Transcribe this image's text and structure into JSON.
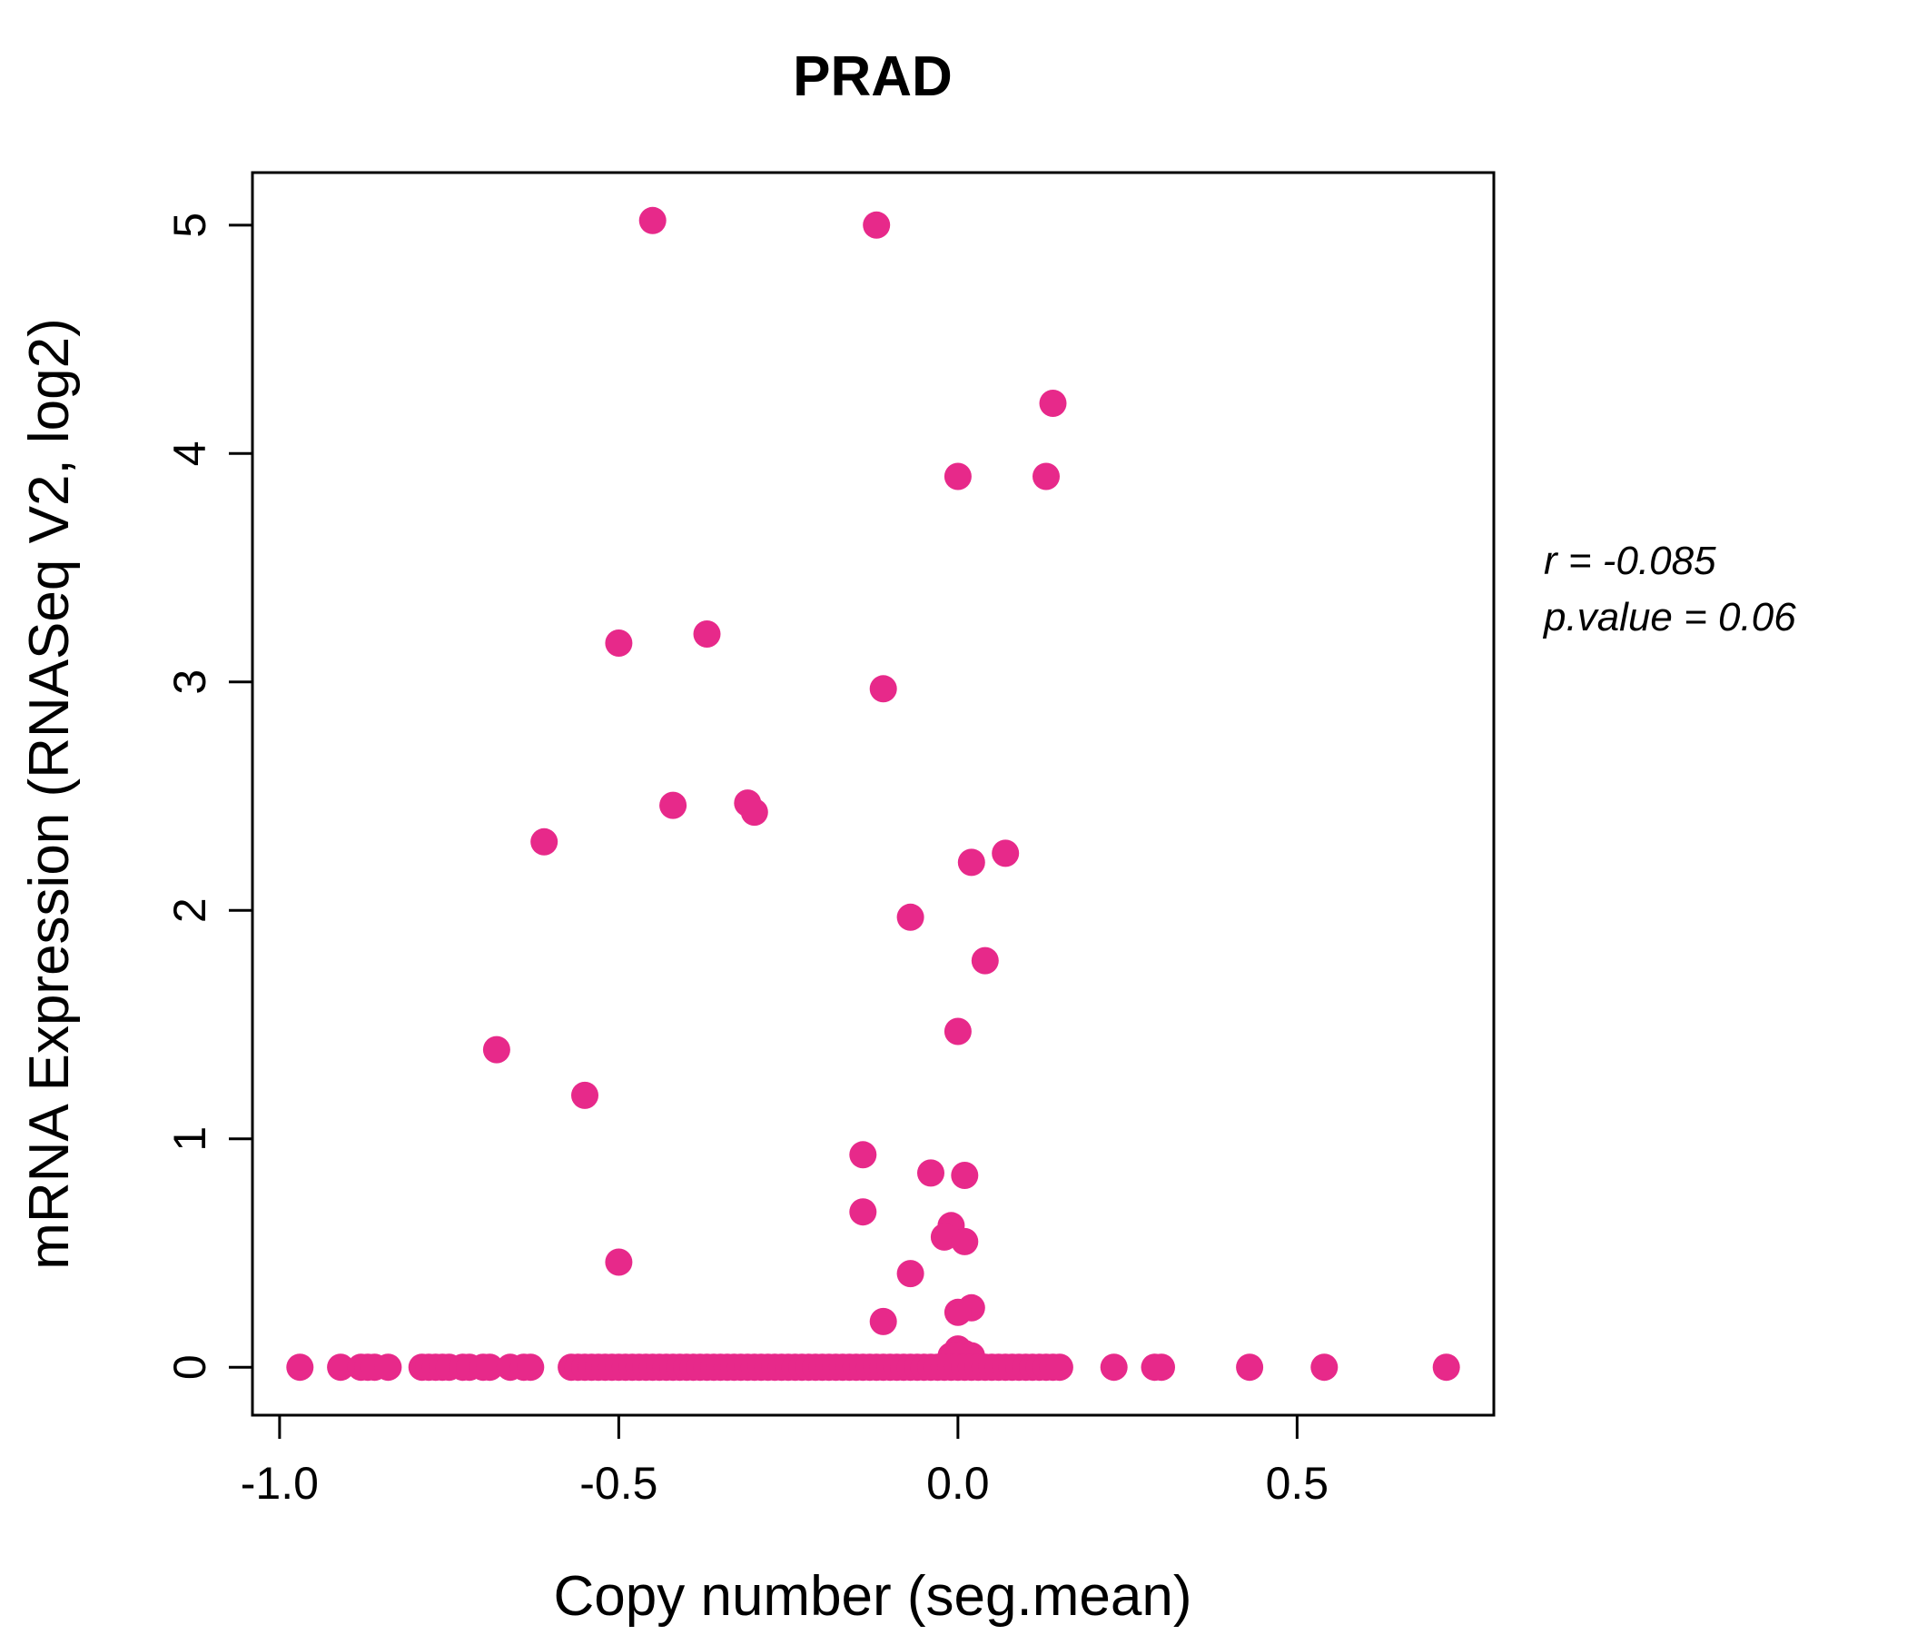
{
  "annotation": {
    "line1": "r = -0.085",
    "line2": "p.value = 0.06"
  },
  "colors": {
    "point": "#E7298A",
    "title": "#E7298A",
    "axis": "#000000"
  },
  "chart_data": {
    "type": "scatter",
    "title": "PRAD",
    "xlabel": "Copy number (seg.mean)",
    "ylabel": "mRNA Expression (RNASeq V2, log2)",
    "xlim": [
      -1.04,
      0.79
    ],
    "ylim": [
      -0.21,
      5.23
    ],
    "xticks": [
      -1.0,
      -0.5,
      0.0,
      0.5
    ],
    "xtick_labels": [
      "-1.0",
      "-0.5",
      "0.0",
      "0.5"
    ],
    "yticks": [
      0,
      1,
      2,
      3,
      4,
      5
    ],
    "ytick_labels": [
      "0",
      "1",
      "2",
      "3",
      "4",
      "5"
    ],
    "grid": false,
    "legend": "none",
    "r": -0.085,
    "p_value": 0.06,
    "points": [
      [
        -0.45,
        5.02
      ],
      [
        -0.12,
        5.0
      ],
      [
        0.14,
        4.22
      ],
      [
        0.0,
        3.9
      ],
      [
        0.13,
        3.9
      ],
      [
        -0.37,
        3.21
      ],
      [
        -0.5,
        3.17
      ],
      [
        -0.11,
        2.97
      ],
      [
        -0.31,
        2.47
      ],
      [
        -0.42,
        2.46
      ],
      [
        -0.3,
        2.43
      ],
      [
        -0.61,
        2.3
      ],
      [
        0.07,
        2.25
      ],
      [
        0.02,
        2.21
      ],
      [
        -0.07,
        1.97
      ],
      [
        0.04,
        1.78
      ],
      [
        0.0,
        1.47
      ],
      [
        -0.68,
        1.39
      ],
      [
        -0.55,
        1.19
      ],
      [
        -0.14,
        0.93
      ],
      [
        -0.04,
        0.85
      ],
      [
        0.01,
        0.84
      ],
      [
        -0.14,
        0.68
      ],
      [
        -0.01,
        0.62
      ],
      [
        -0.02,
        0.57
      ],
      [
        0.01,
        0.55
      ],
      [
        -0.5,
        0.46
      ],
      [
        -0.07,
        0.41
      ],
      [
        0.02,
        0.26
      ],
      [
        0.0,
        0.24
      ],
      [
        -0.11,
        0.2
      ],
      [
        0.0,
        0.08
      ],
      [
        0.01,
        0.06
      ],
      [
        -0.01,
        0.05
      ],
      [
        0.02,
        0.05
      ],
      [
        -0.97,
        0
      ],
      [
        -0.91,
        0
      ],
      [
        -0.88,
        0
      ],
      [
        -0.87,
        0
      ],
      [
        -0.86,
        0
      ],
      [
        -0.84,
        0
      ],
      [
        -0.79,
        0
      ],
      [
        -0.78,
        0
      ],
      [
        -0.77,
        0
      ],
      [
        -0.76,
        0
      ],
      [
        -0.75,
        0
      ],
      [
        -0.73,
        0
      ],
      [
        -0.72,
        0
      ],
      [
        -0.7,
        0
      ],
      [
        -0.69,
        0
      ],
      [
        -0.66,
        0
      ],
      [
        -0.64,
        0
      ],
      [
        -0.63,
        0
      ],
      [
        -0.57,
        0
      ],
      [
        -0.56,
        0
      ],
      [
        -0.55,
        0
      ],
      [
        -0.54,
        0
      ],
      [
        -0.53,
        0
      ],
      [
        -0.52,
        0
      ],
      [
        -0.51,
        0
      ],
      [
        -0.5,
        0
      ],
      [
        -0.49,
        0
      ],
      [
        -0.48,
        0
      ],
      [
        -0.47,
        0
      ],
      [
        -0.46,
        0
      ],
      [
        -0.45,
        0
      ],
      [
        -0.44,
        0
      ],
      [
        -0.43,
        0
      ],
      [
        -0.42,
        0
      ],
      [
        -0.41,
        0
      ],
      [
        -0.4,
        0
      ],
      [
        -0.39,
        0
      ],
      [
        -0.38,
        0
      ],
      [
        -0.37,
        0
      ],
      [
        -0.36,
        0
      ],
      [
        -0.35,
        0
      ],
      [
        -0.34,
        0
      ],
      [
        -0.33,
        0
      ],
      [
        -0.32,
        0
      ],
      [
        -0.31,
        0
      ],
      [
        -0.3,
        0
      ],
      [
        -0.29,
        0
      ],
      [
        -0.28,
        0
      ],
      [
        -0.27,
        0
      ],
      [
        -0.26,
        0
      ],
      [
        -0.25,
        0
      ],
      [
        -0.24,
        0
      ],
      [
        -0.23,
        0
      ],
      [
        -0.22,
        0
      ],
      [
        -0.21,
        0
      ],
      [
        -0.2,
        0
      ],
      [
        -0.19,
        0
      ],
      [
        -0.18,
        0
      ],
      [
        -0.17,
        0
      ],
      [
        -0.16,
        0
      ],
      [
        -0.15,
        0
      ],
      [
        -0.14,
        0
      ],
      [
        -0.13,
        0
      ],
      [
        -0.12,
        0
      ],
      [
        -0.11,
        0
      ],
      [
        -0.1,
        0
      ],
      [
        -0.09,
        0
      ],
      [
        -0.08,
        0
      ],
      [
        -0.07,
        0
      ],
      [
        -0.06,
        0
      ],
      [
        -0.05,
        0
      ],
      [
        -0.04,
        0
      ],
      [
        -0.03,
        0
      ],
      [
        -0.02,
        0
      ],
      [
        -0.01,
        0
      ],
      [
        0.0,
        0
      ],
      [
        0.01,
        0
      ],
      [
        0.02,
        0
      ],
      [
        0.03,
        0
      ],
      [
        0.04,
        0
      ],
      [
        0.05,
        0
      ],
      [
        0.06,
        0
      ],
      [
        0.07,
        0
      ],
      [
        0.08,
        0
      ],
      [
        0.09,
        0
      ],
      [
        0.1,
        0
      ],
      [
        0.11,
        0
      ],
      [
        0.12,
        0
      ],
      [
        0.13,
        0
      ],
      [
        0.14,
        0
      ],
      [
        0.15,
        0
      ],
      [
        0.23,
        0
      ],
      [
        0.29,
        0
      ],
      [
        0.3,
        0
      ],
      [
        0.43,
        0
      ],
      [
        0.54,
        0
      ],
      [
        0.72,
        0
      ]
    ]
  }
}
